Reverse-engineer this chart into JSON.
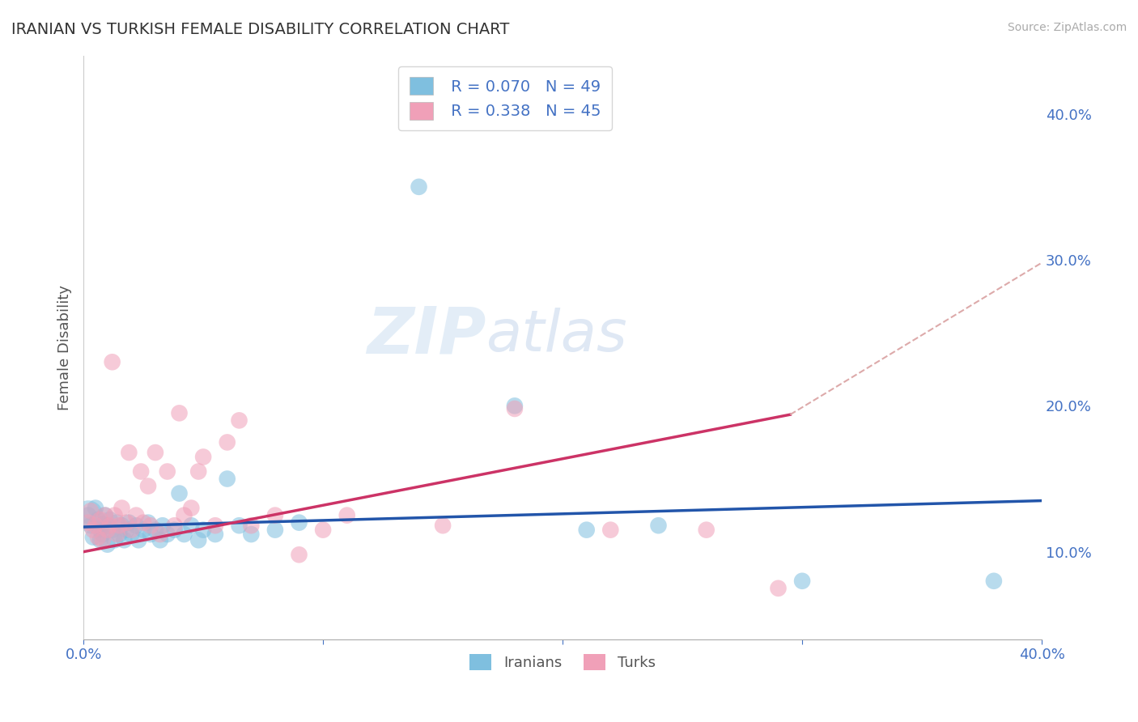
{
  "title": "IRANIAN VS TURKISH FEMALE DISABILITY CORRELATION CHART",
  "source": "Source: ZipAtlas.com",
  "ylabel": "Female Disability",
  "xlim": [
    0.0,
    0.4
  ],
  "ylim": [
    0.04,
    0.44
  ],
  "R1": 0.07,
  "N1": 49,
  "R2": 0.338,
  "N2": 45,
  "color_iranian": "#7fbfdf",
  "color_turk": "#f0a0b8",
  "color_iranian_line": "#2255aa",
  "color_turk_line": "#cc3366",
  "color_dashed": "#ddaaaa",
  "watermark_zip": "ZIP",
  "watermark_atlas": "atlas",
  "background_color": "#ffffff",
  "grid_color": "#cccccc",
  "axis_label_color": "#4472c4",
  "legend_label1": "Iranians",
  "legend_label2": "Turks",
  "iranians_x": [
    0.002,
    0.003,
    0.004,
    0.005,
    0.006,
    0.007,
    0.007,
    0.008,
    0.008,
    0.009,
    0.01,
    0.01,
    0.011,
    0.012,
    0.013,
    0.014,
    0.015,
    0.016,
    0.017,
    0.018,
    0.019,
    0.02,
    0.022,
    0.023,
    0.025,
    0.027,
    0.028,
    0.03,
    0.032,
    0.033,
    0.035,
    0.038,
    0.04,
    0.042,
    0.045,
    0.048,
    0.05,
    0.055,
    0.06,
    0.065,
    0.07,
    0.08,
    0.09,
    0.14,
    0.18,
    0.21,
    0.24,
    0.3,
    0.38
  ],
  "iranians_y": [
    0.125,
    0.118,
    0.11,
    0.13,
    0.122,
    0.108,
    0.115,
    0.119,
    0.112,
    0.125,
    0.105,
    0.118,
    0.122,
    0.115,
    0.108,
    0.12,
    0.112,
    0.118,
    0.108,
    0.115,
    0.12,
    0.112,
    0.118,
    0.108,
    0.115,
    0.12,
    0.112,
    0.115,
    0.108,
    0.118,
    0.112,
    0.115,
    0.14,
    0.112,
    0.118,
    0.108,
    0.115,
    0.112,
    0.15,
    0.118,
    0.112,
    0.115,
    0.12,
    0.35,
    0.2,
    0.115,
    0.118,
    0.08,
    0.08
  ],
  "iranians_size_big": [
    0,
    0,
    0,
    0,
    0,
    0,
    0,
    0,
    0,
    0,
    0,
    0,
    0,
    0,
    0,
    0,
    0,
    0,
    0,
    0,
    0,
    0,
    0,
    0,
    0,
    0,
    0,
    0,
    0,
    0,
    0,
    0,
    0,
    0,
    0,
    0,
    0,
    0,
    0,
    0,
    0,
    0,
    0,
    0,
    0,
    0,
    0,
    0,
    0
  ],
  "turks_x": [
    0.002,
    0.003,
    0.004,
    0.005,
    0.006,
    0.007,
    0.008,
    0.009,
    0.01,
    0.011,
    0.012,
    0.013,
    0.014,
    0.015,
    0.016,
    0.018,
    0.019,
    0.02,
    0.022,
    0.024,
    0.025,
    0.027,
    0.028,
    0.03,
    0.032,
    0.035,
    0.038,
    0.04,
    0.042,
    0.045,
    0.048,
    0.05,
    0.055,
    0.06,
    0.065,
    0.07,
    0.08,
    0.09,
    0.1,
    0.11,
    0.15,
    0.18,
    0.22,
    0.26,
    0.29
  ],
  "turks_y": [
    0.12,
    0.128,
    0.115,
    0.118,
    0.11,
    0.122,
    0.108,
    0.125,
    0.115,
    0.118,
    0.23,
    0.125,
    0.112,
    0.118,
    0.13,
    0.12,
    0.168,
    0.115,
    0.125,
    0.155,
    0.12,
    0.145,
    0.118,
    0.168,
    0.112,
    0.155,
    0.118,
    0.195,
    0.125,
    0.13,
    0.155,
    0.165,
    0.118,
    0.175,
    0.19,
    0.118,
    0.125,
    0.098,
    0.115,
    0.125,
    0.118,
    0.198,
    0.115,
    0.115,
    0.075
  ]
}
